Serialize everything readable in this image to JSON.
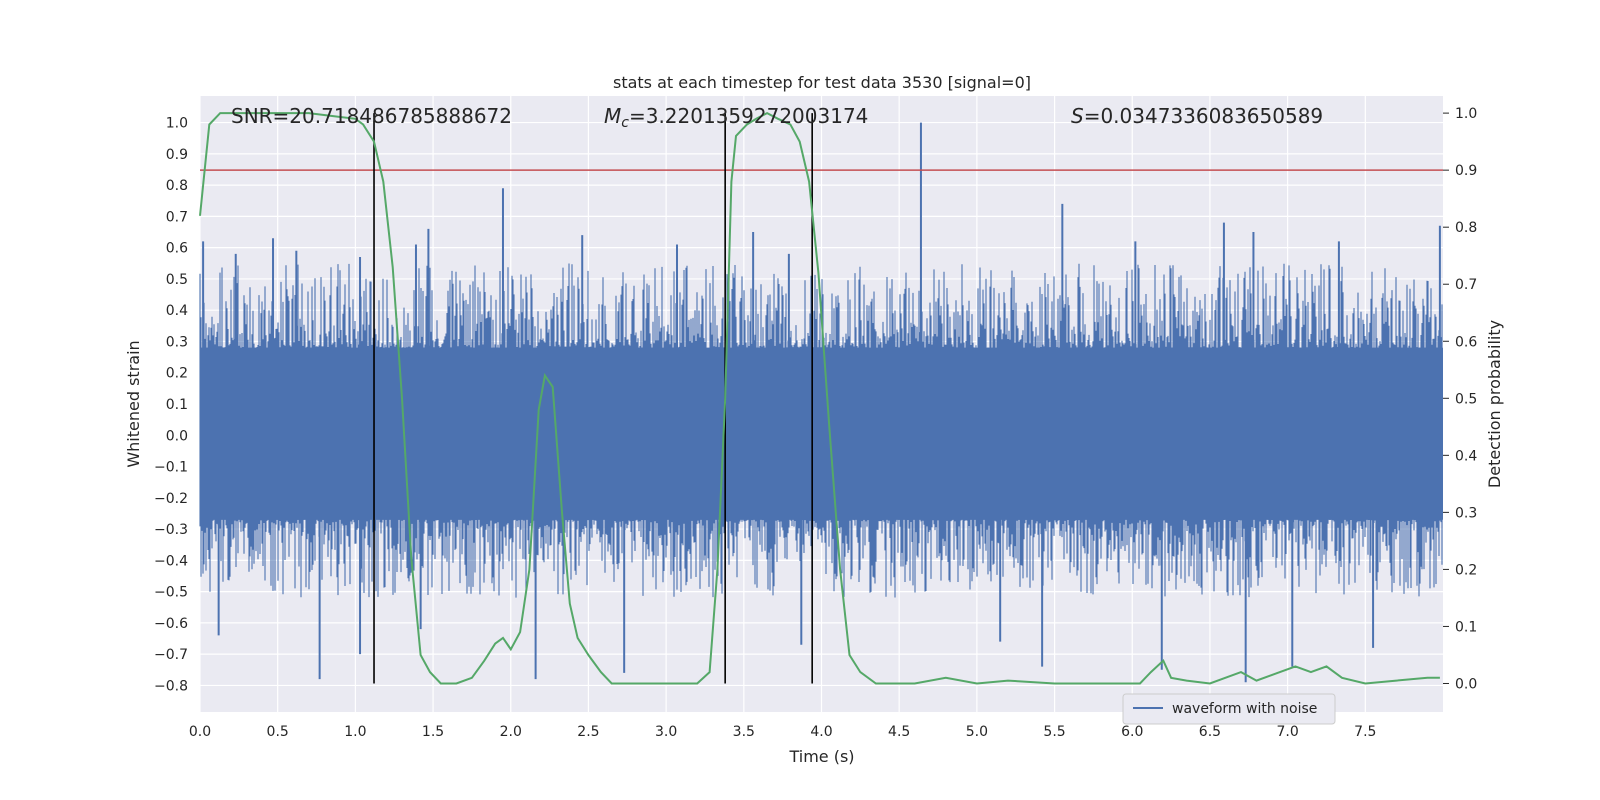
{
  "chart_data": {
    "type": "line",
    "title": "stats at each timestep for test data 3530 [signal=0]",
    "xlabel": "Time (s)",
    "ylabel_left": "Whitened strain",
    "ylabel_right": "Detection probability",
    "xlim": [
      0.0,
      8.0
    ],
    "ylim_left": [
      -0.885,
      1.085
    ],
    "ylim_right": [
      -0.05,
      1.03
    ],
    "x_ticks": [
      "0.0",
      "0.5",
      "1.0",
      "1.5",
      "2.0",
      "2.5",
      "3.0",
      "3.5",
      "4.0",
      "4.5",
      "5.0",
      "5.5",
      "6.0",
      "6.5",
      "7.0",
      "7.5"
    ],
    "y_left_ticks": [
      "1.0",
      "0.9",
      "0.8",
      "0.7",
      "0.6",
      "0.5",
      "0.4",
      "0.3",
      "0.2",
      "0.1",
      "0.0",
      "−0.1",
      "−0.2",
      "−0.3",
      "−0.4",
      "−0.5",
      "−0.6",
      "−0.7",
      "−0.8"
    ],
    "y_right_ticks": [
      "1.0",
      "0.9",
      "0.8",
      "0.7",
      "0.6",
      "0.5",
      "0.4",
      "0.3",
      "0.2",
      "0.1",
      "0.0"
    ],
    "grid": true,
    "legend_position": "lower-right",
    "annotations": {
      "snr": "SNR=20.718486785888672",
      "mc_symbol": "M",
      "mc_sub": "c",
      "mc_value": "=3.2201359272003174",
      "s_symbol": "S",
      "s_value": "=0.0347336083650589"
    },
    "series": [
      {
        "name": "waveform with noise",
        "axis": "left",
        "color": "#4c72b0",
        "description_band": [
          -0.27,
          0.28
        ],
        "spikes": [
          {
            "x": 0.02,
            "y": 0.62
          },
          {
            "x": 0.23,
            "y": 0.58
          },
          {
            "x": 0.47,
            "y": 0.63
          },
          {
            "x": 0.62,
            "y": 0.59
          },
          {
            "x": 1.03,
            "y": 0.57
          },
          {
            "x": 1.39,
            "y": 0.61
          },
          {
            "x": 1.47,
            "y": 0.66
          },
          {
            "x": 1.95,
            "y": 0.79
          },
          {
            "x": 2.46,
            "y": 0.64
          },
          {
            "x": 3.07,
            "y": 0.61
          },
          {
            "x": 3.56,
            "y": 0.65
          },
          {
            "x": 3.79,
            "y": 0.58
          },
          {
            "x": 4.64,
            "y": 1.0
          },
          {
            "x": 5.55,
            "y": 0.74
          },
          {
            "x": 6.02,
            "y": 0.62
          },
          {
            "x": 6.59,
            "y": 0.68
          },
          {
            "x": 6.78,
            "y": 0.65
          },
          {
            "x": 7.33,
            "y": 0.62
          },
          {
            "x": 7.98,
            "y": 0.67
          },
          {
            "x": 0.12,
            "y": -0.64
          },
          {
            "x": 0.77,
            "y": -0.78
          },
          {
            "x": 1.03,
            "y": -0.7
          },
          {
            "x": 1.42,
            "y": -0.62
          },
          {
            "x": 2.16,
            "y": -0.78
          },
          {
            "x": 2.73,
            "y": -0.76
          },
          {
            "x": 3.87,
            "y": -0.67
          },
          {
            "x": 5.15,
            "y": -0.66
          },
          {
            "x": 5.42,
            "y": -0.74
          },
          {
            "x": 6.19,
            "y": -0.75
          },
          {
            "x": 6.73,
            "y": -0.79
          },
          {
            "x": 7.03,
            "y": -0.74
          },
          {
            "x": 7.55,
            "y": -0.68
          }
        ]
      },
      {
        "name": "",
        "axis": "right",
        "color": "#55a868",
        "points": [
          [
            0.0,
            0.82
          ],
          [
            0.06,
            0.98
          ],
          [
            0.13,
            1.0
          ],
          [
            0.3,
            1.0
          ],
          [
            0.5,
            1.0
          ],
          [
            0.7,
            1.0
          ],
          [
            0.85,
            0.995
          ],
          [
            1.0,
            0.99
          ],
          [
            1.05,
            0.98
          ],
          [
            1.12,
            0.95
          ],
          [
            1.18,
            0.88
          ],
          [
            1.24,
            0.73
          ],
          [
            1.3,
            0.5
          ],
          [
            1.36,
            0.22
          ],
          [
            1.42,
            0.05
          ],
          [
            1.48,
            0.02
          ],
          [
            1.55,
            0.0
          ],
          [
            1.65,
            0.0
          ],
          [
            1.75,
            0.01
          ],
          [
            1.83,
            0.04
          ],
          [
            1.9,
            0.07
          ],
          [
            1.95,
            0.08
          ],
          [
            2.0,
            0.06
          ],
          [
            2.06,
            0.09
          ],
          [
            2.12,
            0.2
          ],
          [
            2.18,
            0.48
          ],
          [
            2.22,
            0.54
          ],
          [
            2.27,
            0.52
          ],
          [
            2.33,
            0.3
          ],
          [
            2.38,
            0.14
          ],
          [
            2.43,
            0.08
          ],
          [
            2.5,
            0.05
          ],
          [
            2.58,
            0.02
          ],
          [
            2.65,
            0.0
          ],
          [
            2.8,
            0.0
          ],
          [
            3.0,
            0.0
          ],
          [
            3.2,
            0.0
          ],
          [
            3.28,
            0.02
          ],
          [
            3.33,
            0.2
          ],
          [
            3.38,
            0.5
          ],
          [
            3.42,
            0.88
          ],
          [
            3.45,
            0.96
          ],
          [
            3.52,
            0.98
          ],
          [
            3.58,
            0.99
          ],
          [
            3.65,
            1.0
          ],
          [
            3.72,
            0.99
          ],
          [
            3.8,
            0.98
          ],
          [
            3.86,
            0.95
          ],
          [
            3.92,
            0.88
          ],
          [
            3.98,
            0.72
          ],
          [
            4.05,
            0.45
          ],
          [
            4.12,
            0.2
          ],
          [
            4.18,
            0.05
          ],
          [
            4.25,
            0.02
          ],
          [
            4.35,
            0.0
          ],
          [
            4.6,
            0.0
          ],
          [
            4.8,
            0.01
          ],
          [
            5.0,
            0.0
          ],
          [
            5.2,
            0.005
          ],
          [
            5.5,
            0.0
          ],
          [
            5.8,
            0.0
          ],
          [
            6.05,
            0.0
          ],
          [
            6.12,
            0.02
          ],
          [
            6.2,
            0.04
          ],
          [
            6.25,
            0.01
          ],
          [
            6.35,
            0.005
          ],
          [
            6.5,
            0.0
          ],
          [
            6.7,
            0.02
          ],
          [
            6.8,
            0.005
          ],
          [
            6.95,
            0.02
          ],
          [
            7.05,
            0.03
          ],
          [
            7.15,
            0.02
          ],
          [
            7.25,
            0.03
          ],
          [
            7.35,
            0.01
          ],
          [
            7.5,
            0.0
          ],
          [
            7.7,
            0.005
          ],
          [
            7.9,
            0.01
          ],
          [
            7.98,
            0.01
          ]
        ]
      }
    ],
    "threshold_line": {
      "axis": "right",
      "y": 0.9,
      "color": "#c44e52"
    },
    "vertical_lines": [
      1.12,
      3.38,
      3.94
    ]
  }
}
